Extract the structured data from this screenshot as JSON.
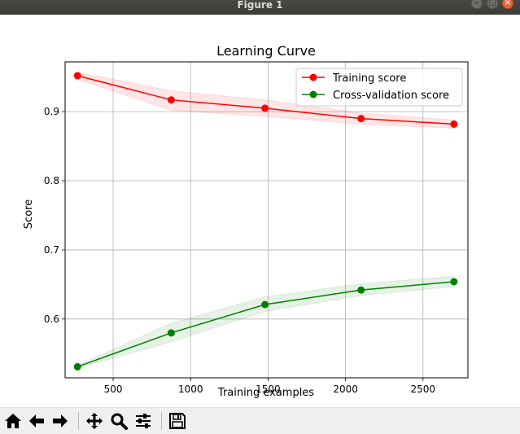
{
  "window": {
    "title": "Figure 1"
  },
  "toolbar": {
    "buttons": [
      {
        "name": "home-icon"
      },
      {
        "name": "back-arrow-icon"
      },
      {
        "name": "forward-arrow-icon"
      },
      {
        "name": "pan-icon"
      },
      {
        "name": "zoom-icon"
      },
      {
        "name": "subplots-config-icon"
      },
      {
        "name": "save-icon"
      }
    ]
  },
  "chart_data": {
    "type": "line",
    "title": "Learning Curve",
    "xlabel": "Training examples",
    "ylabel": "Score",
    "xlim": [
      190,
      2790
    ],
    "ylim": [
      0.515,
      0.972
    ],
    "xticks": [
      500,
      1000,
      1500,
      2000,
      2500
    ],
    "xtick_labels": [
      "500",
      "1000",
      "1500",
      "2000",
      "2500"
    ],
    "yticks": [
      0.6,
      0.7,
      0.8,
      0.9
    ],
    "ytick_labels": [
      "0.6",
      "0.7",
      "0.8",
      "0.9"
    ],
    "grid": true,
    "legend_position": "top-right",
    "x": [
      270,
      875,
      1480,
      2100,
      2700
    ],
    "series": [
      {
        "name": "Training score",
        "color": "#ff0000",
        "values": [
          0.952,
          0.917,
          0.905,
          0.89,
          0.882
        ],
        "band_lower": [
          0.947,
          0.902,
          0.893,
          0.882,
          0.876
        ],
        "band_upper": [
          0.957,
          0.93,
          0.917,
          0.898,
          0.888
        ]
      },
      {
        "name": "Cross-validation score",
        "color": "#008000",
        "values": [
          0.531,
          0.58,
          0.621,
          0.642,
          0.654
        ],
        "band_lower": [
          0.529,
          0.567,
          0.611,
          0.634,
          0.647
        ],
        "band_upper": [
          0.533,
          0.594,
          0.632,
          0.651,
          0.662
        ]
      }
    ]
  }
}
